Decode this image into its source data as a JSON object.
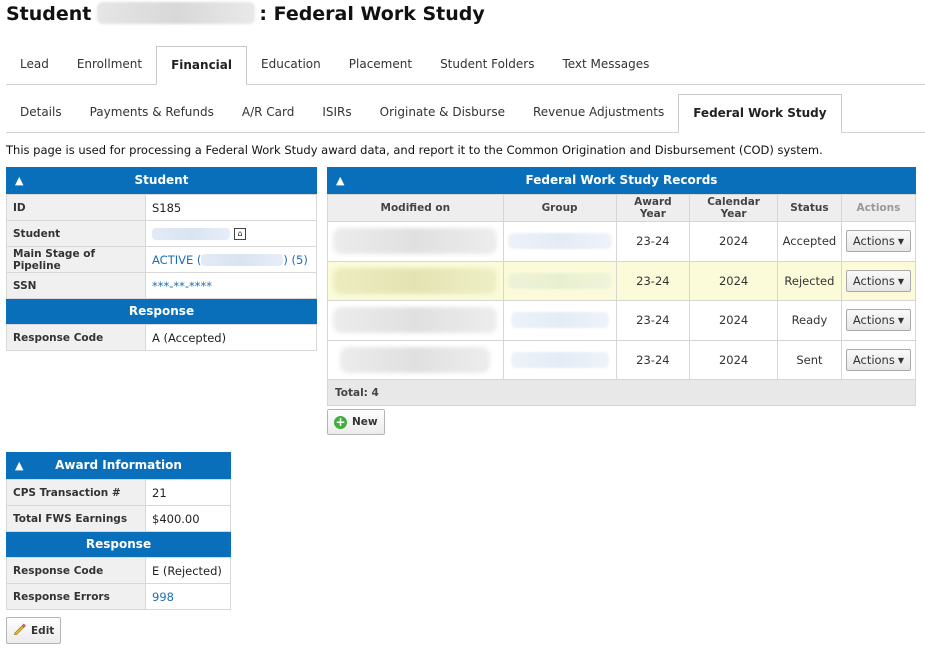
{
  "title": {
    "prefix": "Student",
    "suffix": ": Federal Work Study"
  },
  "tabs_primary": [
    "Lead",
    "Enrollment",
    "Financial",
    "Education",
    "Placement",
    "Student Folders",
    "Text Messages"
  ],
  "tabs_secondary": [
    "Details",
    "Payments & Refunds",
    "A/R Card",
    "ISIRs",
    "Originate & Disburse",
    "Revenue Adjustments",
    "Federal Work Study"
  ],
  "description": "This page is used for processing a Federal Work Study award data, and report it to the Common Origination and Disbursement (COD) system.",
  "student_panel": {
    "title": "Student",
    "rows": {
      "id_label": "ID",
      "id_value": "S185",
      "student_label": "Student",
      "stage_label": "Main Stage of Pipeline",
      "stage_active": "ACTIVE (",
      "stage_count": ") (5)",
      "ssn_label": "SSN",
      "ssn_value": "***-**-****"
    },
    "response_title": "Response",
    "response_code_label": "Response Code",
    "response_code_value": "A (Accepted)"
  },
  "fws_panel": {
    "title": "Federal Work Study Records",
    "columns": [
      "Modified on",
      "Group",
      "Award Year",
      "Calendar Year",
      "Status",
      "Actions"
    ],
    "records": [
      {
        "award_year": "23-24",
        "calendar_year": "2024",
        "status": "Accepted",
        "action": "Actions"
      },
      {
        "award_year": "23-24",
        "calendar_year": "2024",
        "status": "Rejected",
        "action": "Actions"
      },
      {
        "award_year": "23-24",
        "calendar_year": "2024",
        "status": "Ready",
        "action": "Actions"
      },
      {
        "award_year": "23-24",
        "calendar_year": "2024",
        "status": "Sent",
        "action": "Actions"
      }
    ],
    "total": "Total: 4",
    "new_label": "New"
  },
  "award_panel": {
    "title": "Award Information",
    "cps_label": "CPS Transaction #",
    "cps_value": "21",
    "earnings_label": "Total FWS Earnings",
    "earnings_value": "$400.00",
    "response_title": "Response",
    "response_code_label": "Response Code",
    "response_code_value": "E (Rejected)",
    "response_errors_label": "Response Errors",
    "response_errors_value": "998",
    "edit_label": "Edit"
  },
  "colors": {
    "header_blue": "#0a6fba",
    "highlight_row": "#fbfbd9",
    "link": "#1d6db5"
  }
}
